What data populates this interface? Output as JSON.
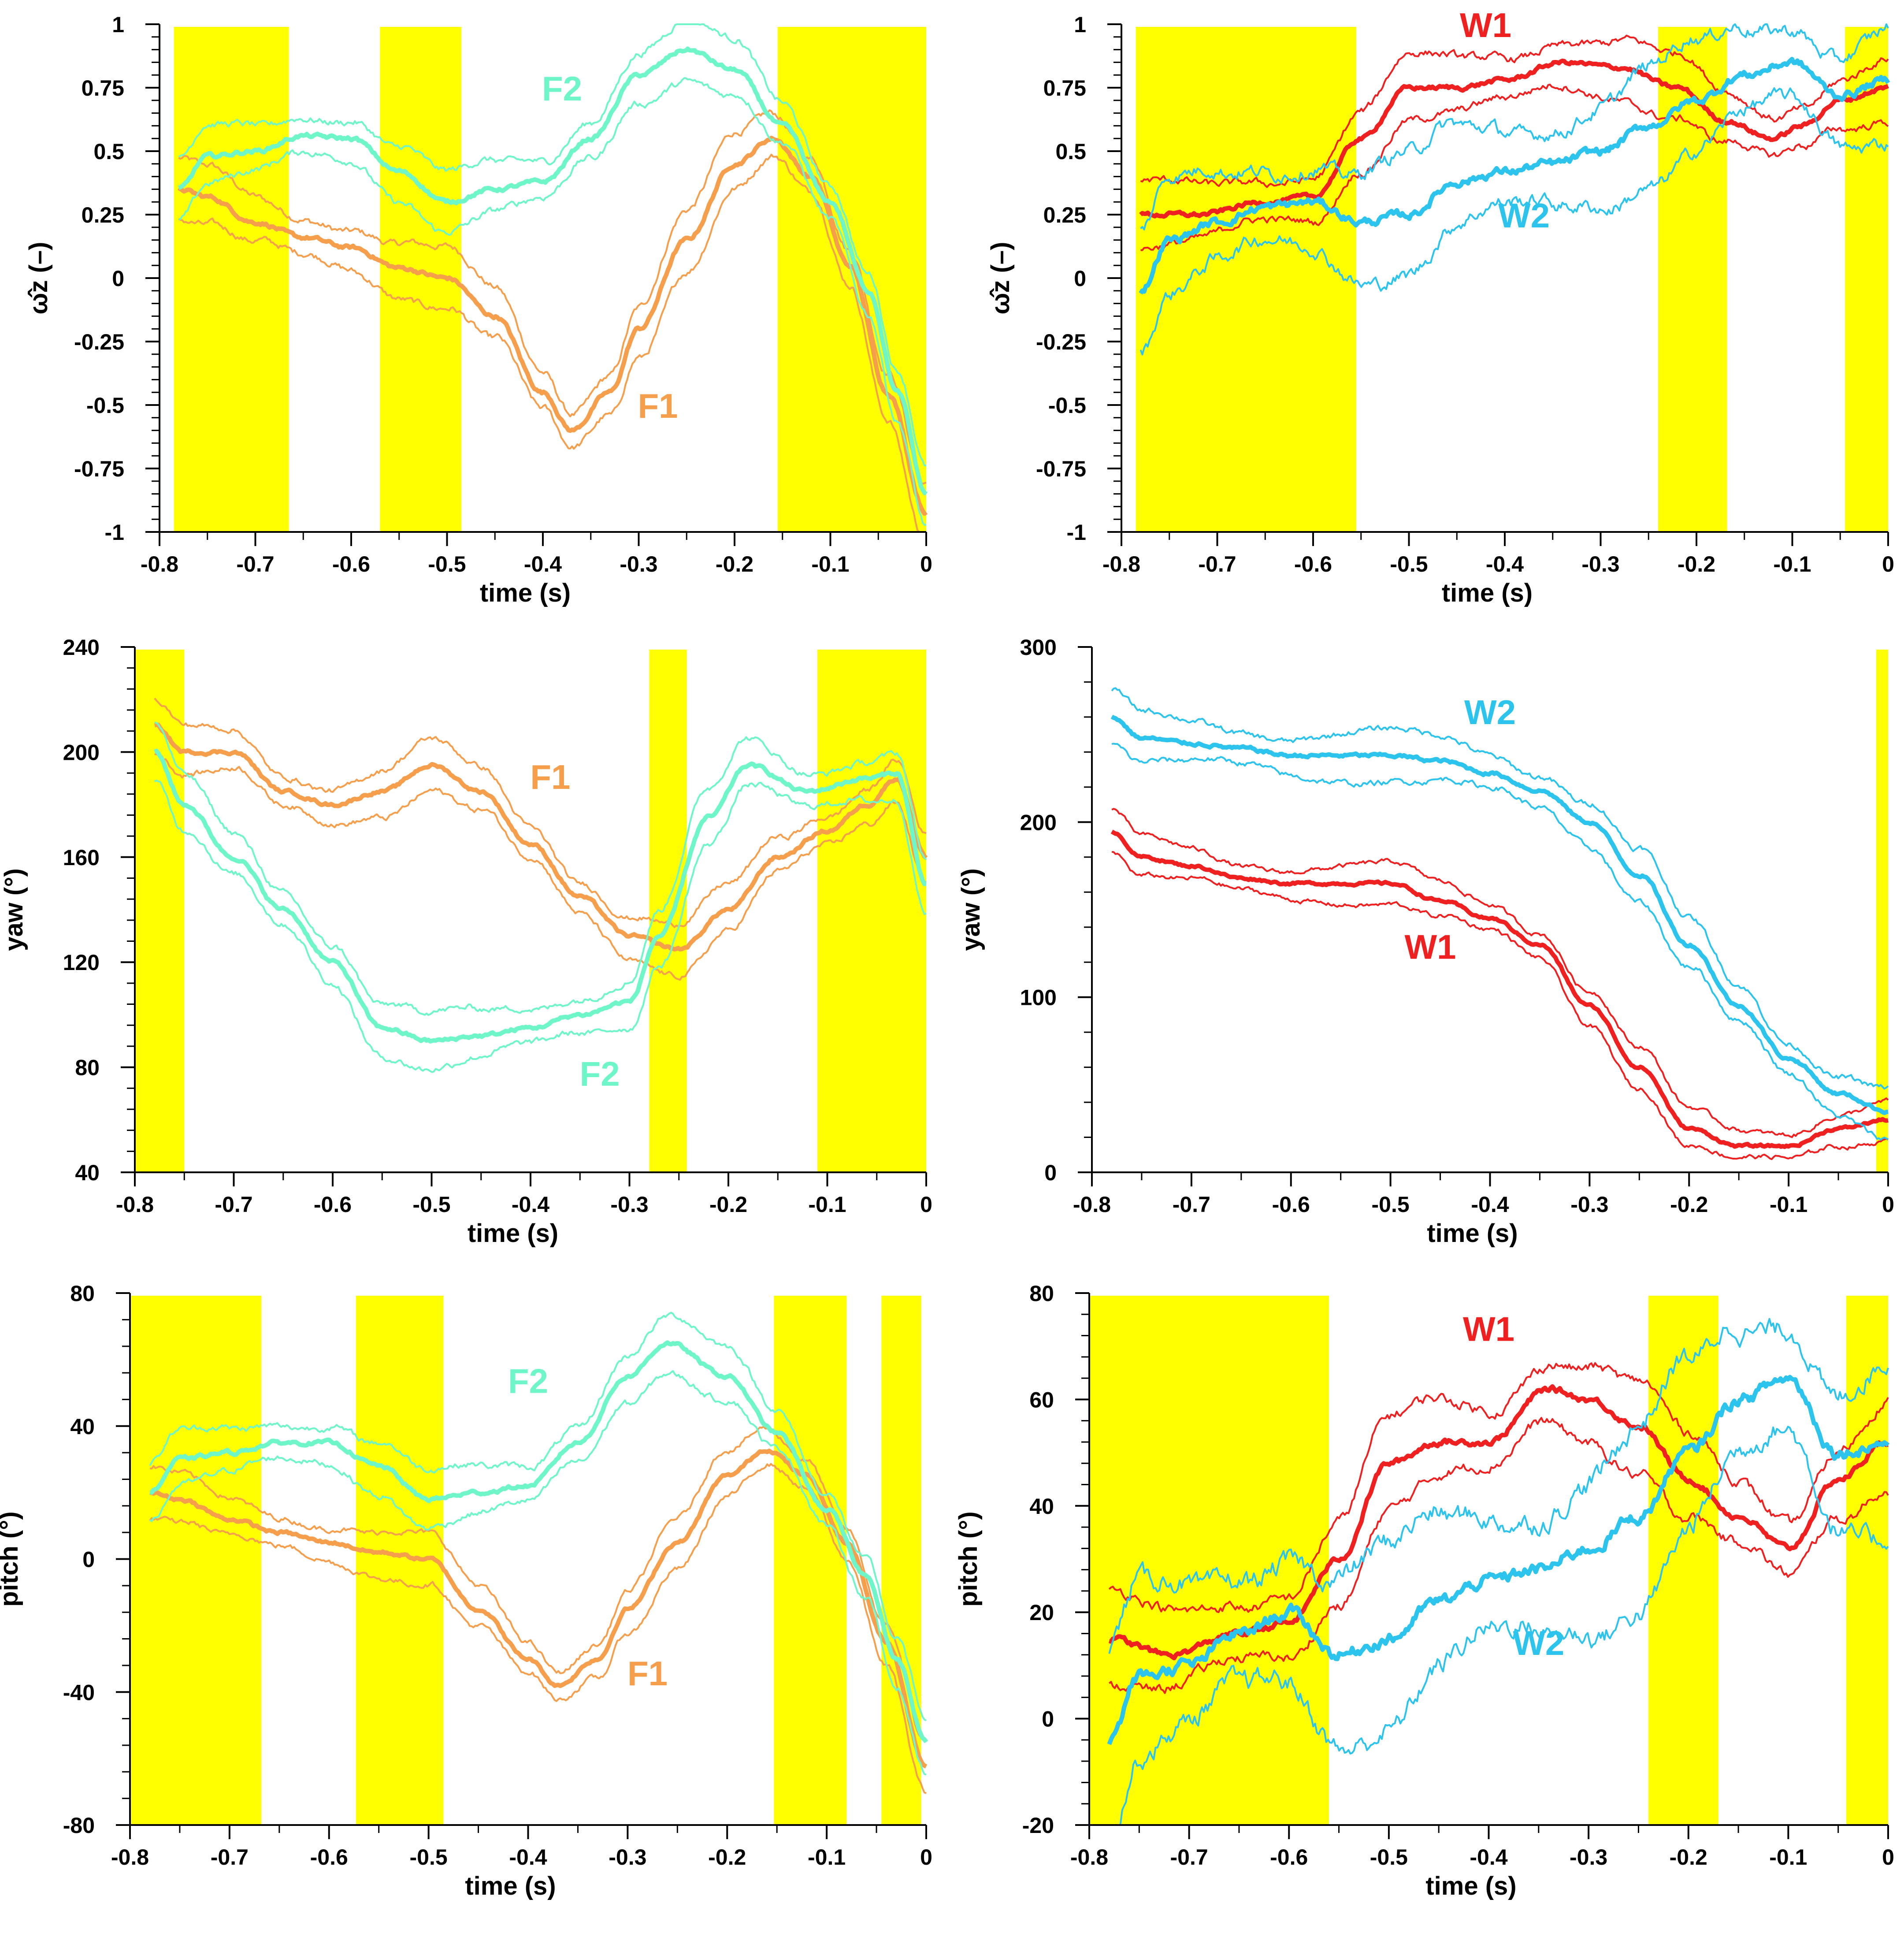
{
  "figure_description": "Six panels of head-orientation time series",
  "colors": {
    "F1": "#F59E4C",
    "F2": "#6EF5C8",
    "W1": "#EE2020",
    "W2": "#2CC4EC",
    "shade": "#FFFF00"
  },
  "chart_data": [
    {
      "type": "line",
      "panel": "top-left",
      "xlabel": "time (s)",
      "ylabel": "ω̂z (–)",
      "xlim": [
        -0.8,
        0
      ],
      "ylim": [
        -1,
        1
      ],
      "xticks": [
        -0.8,
        -0.7,
        -0.6,
        -0.5,
        -0.4,
        -0.3,
        -0.2,
        -0.1,
        0
      ],
      "xtick_labels": [
        "-0.8",
        "-0.7",
        "-0.6",
        "-0.5",
        "-0.4",
        "-0.3",
        "-0.2",
        "-0.1",
        "0"
      ],
      "yticks": [
        -1,
        -0.75,
        -0.5,
        -0.25,
        0,
        0.25,
        0.5,
        0.75,
        1
      ],
      "ytick_labels": [
        "-1",
        "-0.75",
        "-0.5",
        "-0.25",
        "0",
        "0.25",
        "0.5",
        "0.75",
        "1"
      ],
      "shaded_intervals": [
        [
          -0.785,
          -0.665
        ],
        [
          -0.57,
          -0.485
        ],
        [
          -0.155,
          0
        ]
      ],
      "series": [
        {
          "name": "F1",
          "color_key": "F1",
          "x": [
            -0.78,
            -0.75,
            -0.7,
            -0.65,
            -0.6,
            -0.55,
            -0.5,
            -0.45,
            -0.4,
            -0.37,
            -0.33,
            -0.3,
            -0.25,
            -0.2,
            -0.16,
            -0.12,
            -0.08,
            -0.04,
            0
          ],
          "mean": [
            0.35,
            0.32,
            0.22,
            0.16,
            0.12,
            0.04,
            0.0,
            -0.15,
            -0.45,
            -0.6,
            -0.45,
            -0.2,
            0.15,
            0.45,
            0.55,
            0.4,
            0.05,
            -0.45,
            -0.92
          ],
          "spread": 0.11,
          "label": "F1",
          "label_at": [
            -0.28,
            -0.55
          ]
        },
        {
          "name": "F2",
          "color_key": "F2",
          "x": [
            -0.78,
            -0.75,
            -0.7,
            -0.65,
            -0.6,
            -0.55,
            -0.5,
            -0.45,
            -0.4,
            -0.35,
            -0.3,
            -0.25,
            -0.2,
            -0.15,
            -0.1,
            -0.06,
            -0.03,
            0
          ],
          "mean": [
            0.35,
            0.48,
            0.5,
            0.56,
            0.55,
            0.42,
            0.3,
            0.35,
            0.38,
            0.55,
            0.8,
            0.9,
            0.82,
            0.6,
            0.3,
            -0.05,
            -0.45,
            -0.85
          ],
          "spread": 0.11,
          "label": "F2",
          "label_at": [
            -0.38,
            0.7
          ]
        }
      ]
    },
    {
      "type": "line",
      "panel": "top-right",
      "xlabel": "time (s)",
      "ylabel": "ω̂z (–)",
      "xlim": [
        -0.8,
        0
      ],
      "ylim": [
        -1,
        1
      ],
      "xticks": [
        -0.8,
        -0.7,
        -0.6,
        -0.5,
        -0.4,
        -0.3,
        -0.2,
        -0.1,
        0
      ],
      "xtick_labels": [
        "-0.8",
        "-0.7",
        "-0.6",
        "-0.5",
        "-0.4",
        "-0.3",
        "-0.2",
        "-0.1",
        "0"
      ],
      "yticks": [
        -1,
        -0.75,
        -0.5,
        -0.25,
        0,
        0.25,
        0.5,
        0.75,
        1
      ],
      "ytick_labels": [
        "-1",
        "-0.75",
        "-0.5",
        "-0.25",
        "0",
        "0.25",
        "0.5",
        "0.75",
        "1"
      ],
      "shaded_intervals": [
        [
          -0.785,
          -0.555
        ],
        [
          -0.24,
          -0.168
        ],
        [
          -0.045,
          0
        ]
      ],
      "series": [
        {
          "name": "W1",
          "color_key": "W1",
          "x": [
            -0.78,
            -0.72,
            -0.65,
            -0.6,
            -0.55,
            -0.5,
            -0.45,
            -0.4,
            -0.34,
            -0.28,
            -0.22,
            -0.17,
            -0.12,
            -0.09,
            -0.05,
            0
          ],
          "mean": [
            0.25,
            0.25,
            0.3,
            0.32,
            0.55,
            0.75,
            0.75,
            0.78,
            0.85,
            0.83,
            0.75,
            0.62,
            0.55,
            0.6,
            0.7,
            0.75
          ],
          "spread": 0.12,
          "label": "W1",
          "label_at": [
            -0.42,
            0.95
          ]
        },
        {
          "name": "W2",
          "color_key": "W2",
          "x": [
            -0.78,
            -0.75,
            -0.7,
            -0.65,
            -0.6,
            -0.55,
            -0.5,
            -0.45,
            -0.4,
            -0.35,
            -0.3,
            -0.25,
            -0.2,
            -0.15,
            -0.1,
            -0.05,
            0
          ],
          "mean": [
            -0.05,
            0.15,
            0.22,
            0.28,
            0.3,
            0.22,
            0.25,
            0.38,
            0.42,
            0.45,
            0.5,
            0.6,
            0.7,
            0.8,
            0.85,
            0.72,
            0.78
          ],
          "spread": 0.22,
          "label": "W2",
          "label_at": [
            -0.38,
            0.2
          ]
        }
      ]
    },
    {
      "type": "line",
      "panel": "middle-left",
      "xlabel": "time (s)",
      "ylabel": "yaw (°)",
      "xlim": [
        -0.8,
        0
      ],
      "ylim": [
        40,
        240
      ],
      "xticks": [
        -0.8,
        -0.7,
        -0.6,
        -0.5,
        -0.4,
        -0.3,
        -0.2,
        -0.1,
        0
      ],
      "xtick_labels": [
        "-0.8",
        "-0.7",
        "-0.6",
        "-0.5",
        "-0.4",
        "-0.3",
        "-0.2",
        "-0.1",
        "0"
      ],
      "yticks": [
        40,
        80,
        120,
        160,
        200,
        240
      ],
      "ytick_labels": [
        "40",
        "80",
        "120",
        "160",
        "200",
        "240"
      ],
      "shaded_intervals": [
        [
          -0.8,
          -0.75
        ],
        [
          -0.28,
          -0.242
        ],
        [
          -0.11,
          0
        ]
      ],
      "series": [
        {
          "name": "F1",
          "color_key": "F1",
          "x": [
            -0.78,
            -0.75,
            -0.7,
            -0.65,
            -0.6,
            -0.55,
            -0.5,
            -0.45,
            -0.4,
            -0.35,
            -0.3,
            -0.25,
            -0.2,
            -0.15,
            -0.1,
            -0.06,
            -0.03,
            0
          ],
          "mean": [
            210,
            200,
            200,
            185,
            180,
            185,
            195,
            185,
            165,
            145,
            130,
            125,
            140,
            160,
            170,
            180,
            190,
            160
          ],
          "spread": 9,
          "label": "F1",
          "label_at": [
            -0.38,
            186
          ]
        },
        {
          "name": "F2",
          "color_key": "F2",
          "x": [
            -0.78,
            -0.75,
            -0.7,
            -0.65,
            -0.6,
            -0.55,
            -0.5,
            -0.45,
            -0.4,
            -0.35,
            -0.3,
            -0.27,
            -0.22,
            -0.18,
            -0.12,
            -0.06,
            -0.03,
            0
          ],
          "mean": [
            200,
            180,
            160,
            140,
            120,
            95,
            90,
            92,
            95,
            100,
            105,
            130,
            175,
            195,
            185,
            190,
            192,
            150
          ],
          "spread": 10,
          "label": "F2",
          "label_at": [
            -0.33,
            73
          ]
        }
      ]
    },
    {
      "type": "line",
      "panel": "middle-right",
      "xlabel": "time (s)",
      "ylabel": "yaw (°)",
      "xlim": [
        -0.8,
        0
      ],
      "ylim": [
        0,
        300
      ],
      "xticks": [
        -0.8,
        -0.7,
        -0.6,
        -0.5,
        -0.4,
        -0.3,
        -0.2,
        -0.1,
        0
      ],
      "xtick_labels": [
        "-0.8",
        "-0.7",
        "-0.6",
        "-0.5",
        "-0.4",
        "-0.3",
        "-0.2",
        "-0.1",
        "0"
      ],
      "yticks": [
        0,
        100,
        200,
        300
      ],
      "ytick_labels": [
        "0",
        "100",
        "200",
        "300"
      ],
      "shaded_intervals": [
        [
          -0.012,
          0
        ]
      ],
      "series": [
        {
          "name": "W1",
          "color_key": "W1",
          "x": [
            -0.78,
            -0.75,
            -0.7,
            -0.65,
            -0.6,
            -0.55,
            -0.5,
            -0.45,
            -0.4,
            -0.35,
            -0.3,
            -0.25,
            -0.2,
            -0.15,
            -0.1,
            -0.05,
            0
          ],
          "mean": [
            195,
            180,
            175,
            168,
            165,
            165,
            165,
            155,
            145,
            130,
            95,
            60,
            25,
            15,
            15,
            25,
            30
          ],
          "spread": 11,
          "label": "W1",
          "label_at": [
            -0.46,
            122
          ]
        },
        {
          "name": "W2",
          "color_key": "W2",
          "x": [
            -0.78,
            -0.75,
            -0.7,
            -0.65,
            -0.6,
            -0.55,
            -0.5,
            -0.45,
            -0.4,
            -0.35,
            -0.3,
            -0.25,
            -0.2,
            -0.15,
            -0.1,
            -0.05,
            0
          ],
          "mean": [
            260,
            248,
            245,
            242,
            238,
            238,
            238,
            235,
            228,
            218,
            200,
            170,
            130,
            95,
            65,
            45,
            35
          ],
          "spread": 14,
          "label": "W2",
          "label_at": [
            -0.4,
            256
          ]
        }
      ]
    },
    {
      "type": "line",
      "panel": "bottom-left",
      "xlabel": "time (s)",
      "ylabel": "pitch (°)",
      "xlim": [
        -0.8,
        0
      ],
      "ylim": [
        -80,
        80
      ],
      "xticks": [
        -0.8,
        -0.7,
        -0.6,
        -0.5,
        -0.4,
        -0.3,
        -0.2,
        -0.1,
        0
      ],
      "xtick_labels": [
        "-0.8",
        "-0.7",
        "-0.6",
        "-0.5",
        "-0.4",
        "-0.3",
        "-0.2",
        "-0.1",
        "0"
      ],
      "yticks": [
        -80,
        -40,
        0,
        40,
        80
      ],
      "ytick_labels": [
        "-80",
        "-40",
        "0",
        "40",
        "80"
      ],
      "shaded_intervals": [
        [
          -0.8,
          -0.668
        ],
        [
          -0.573,
          -0.485
        ],
        [
          -0.153,
          -0.08
        ],
        [
          -0.045,
          -0.005
        ]
      ],
      "series": [
        {
          "name": "F1",
          "color_key": "F1",
          "x": [
            -0.78,
            -0.75,
            -0.7,
            -0.65,
            -0.6,
            -0.55,
            -0.5,
            -0.45,
            -0.4,
            -0.37,
            -0.33,
            -0.3,
            -0.25,
            -0.2,
            -0.16,
            -0.12,
            -0.08,
            -0.04,
            0
          ],
          "mean": [
            20,
            18,
            12,
            8,
            5,
            2,
            0,
            -15,
            -30,
            -38,
            -30,
            -15,
            5,
            25,
            33,
            25,
            5,
            -25,
            -62
          ],
          "spread": 7,
          "label": "F1",
          "label_at": [
            -0.28,
            -38
          ]
        },
        {
          "name": "F2",
          "color_key": "F2",
          "x": [
            -0.78,
            -0.75,
            -0.7,
            -0.65,
            -0.6,
            -0.55,
            -0.5,
            -0.45,
            -0.4,
            -0.35,
            -0.3,
            -0.26,
            -0.2,
            -0.15,
            -0.1,
            -0.06,
            -0.03,
            0
          ],
          "mean": [
            20,
            30,
            32,
            35,
            35,
            28,
            18,
            20,
            22,
            35,
            55,
            65,
            55,
            38,
            15,
            -5,
            -30,
            -55
          ],
          "spread": 8,
          "label": "F2",
          "label_at": [
            -0.4,
            50
          ]
        }
      ]
    },
    {
      "type": "line",
      "panel": "bottom-right",
      "xlabel": "time (s)",
      "ylabel": "pitch (°)",
      "xlim": [
        -0.8,
        0
      ],
      "ylim": [
        -20,
        80
      ],
      "xticks": [
        -0.8,
        -0.7,
        -0.6,
        -0.5,
        -0.4,
        -0.3,
        -0.2,
        -0.1,
        0
      ],
      "xtick_labels": [
        "-0.8",
        "-0.7",
        "-0.6",
        "-0.5",
        "-0.4",
        "-0.3",
        "-0.2",
        "-0.1",
        "0"
      ],
      "yticks": [
        -20,
        0,
        20,
        40,
        60,
        80
      ],
      "ytick_labels": [
        "-20",
        "0",
        "20",
        "40",
        "60",
        "80"
      ],
      "shaded_intervals": [
        [
          -0.8,
          -0.56
        ],
        [
          -0.24,
          -0.17
        ],
        [
          -0.042,
          0
        ]
      ],
      "series": [
        {
          "name": "W1",
          "color_key": "W1",
          "x": [
            -0.78,
            -0.72,
            -0.65,
            -0.6,
            -0.55,
            -0.5,
            -0.45,
            -0.4,
            -0.34,
            -0.3,
            -0.25,
            -0.2,
            -0.15,
            -0.1,
            -0.05,
            0
          ],
          "mean": [
            15,
            12,
            16,
            18,
            30,
            48,
            52,
            52,
            62,
            60,
            55,
            45,
            38,
            32,
            45,
            52
          ],
          "spread": 8,
          "label": "W1",
          "label_at": [
            -0.4,
            71
          ]
        },
        {
          "name": "W2",
          "color_key": "W2",
          "x": [
            -0.78,
            -0.75,
            -0.7,
            -0.65,
            -0.6,
            -0.55,
            -0.5,
            -0.45,
            -0.4,
            -0.35,
            -0.3,
            -0.25,
            -0.2,
            -0.15,
            -0.1,
            -0.05,
            0
          ],
          "mean": [
            -4,
            8,
            10,
            16,
            20,
            12,
            15,
            22,
            26,
            28,
            32,
            38,
            50,
            60,
            64,
            50,
            52
          ],
          "spread": 16,
          "label": "W2",
          "label_at": [
            -0.35,
            12
          ]
        }
      ]
    }
  ]
}
